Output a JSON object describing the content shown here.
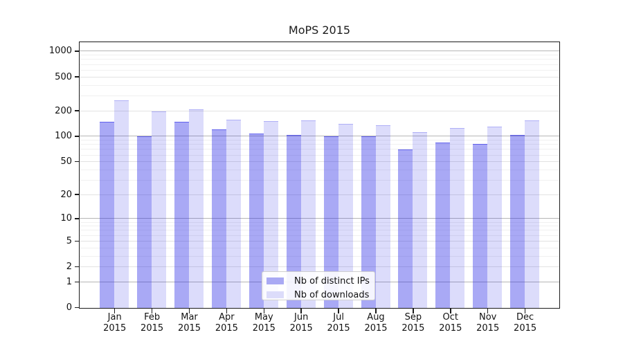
{
  "chart_data": {
    "type": "bar",
    "title": "MoPS 2015",
    "categories": [
      "Jan",
      "Feb",
      "Mar",
      "Apr",
      "May",
      "Jun",
      "Jul",
      "Aug",
      "Sep",
      "Oct",
      "Nov",
      "Dec"
    ],
    "year": "2015",
    "series": [
      {
        "name": "Nb of distinct IPs",
        "color": "#a9a9f4",
        "fill": "rgba(40,40,230,0.40)",
        "edge": "rgba(40,40,230,0.55)",
        "values": [
          150,
          100,
          150,
          122,
          108,
          105,
          100,
          100,
          70,
          85,
          82,
          105
        ]
      },
      {
        "name": "Nb of downloads",
        "color": "#dcdcfa",
        "fill": "rgba(40,40,230,0.16)",
        "edge": "rgba(40,40,230,0.25)",
        "values": [
          270,
          200,
          208,
          159,
          153,
          156,
          141,
          136,
          113,
          126,
          132,
          155
        ]
      }
    ],
    "xlabel": "",
    "ylabel": "",
    "y_ticks": [
      0,
      1,
      2,
      5,
      10,
      20,
      50,
      100,
      200,
      500,
      1000
    ],
    "y_scale": "log10(value+1)",
    "ylim": [
      0,
      1285
    ],
    "grid": true,
    "legend_position": "lower center",
    "grid_colors": {
      "decade": "#b5b5b5",
      "major": "#e2e2e2",
      "minor": "#f0f0f0"
    }
  }
}
